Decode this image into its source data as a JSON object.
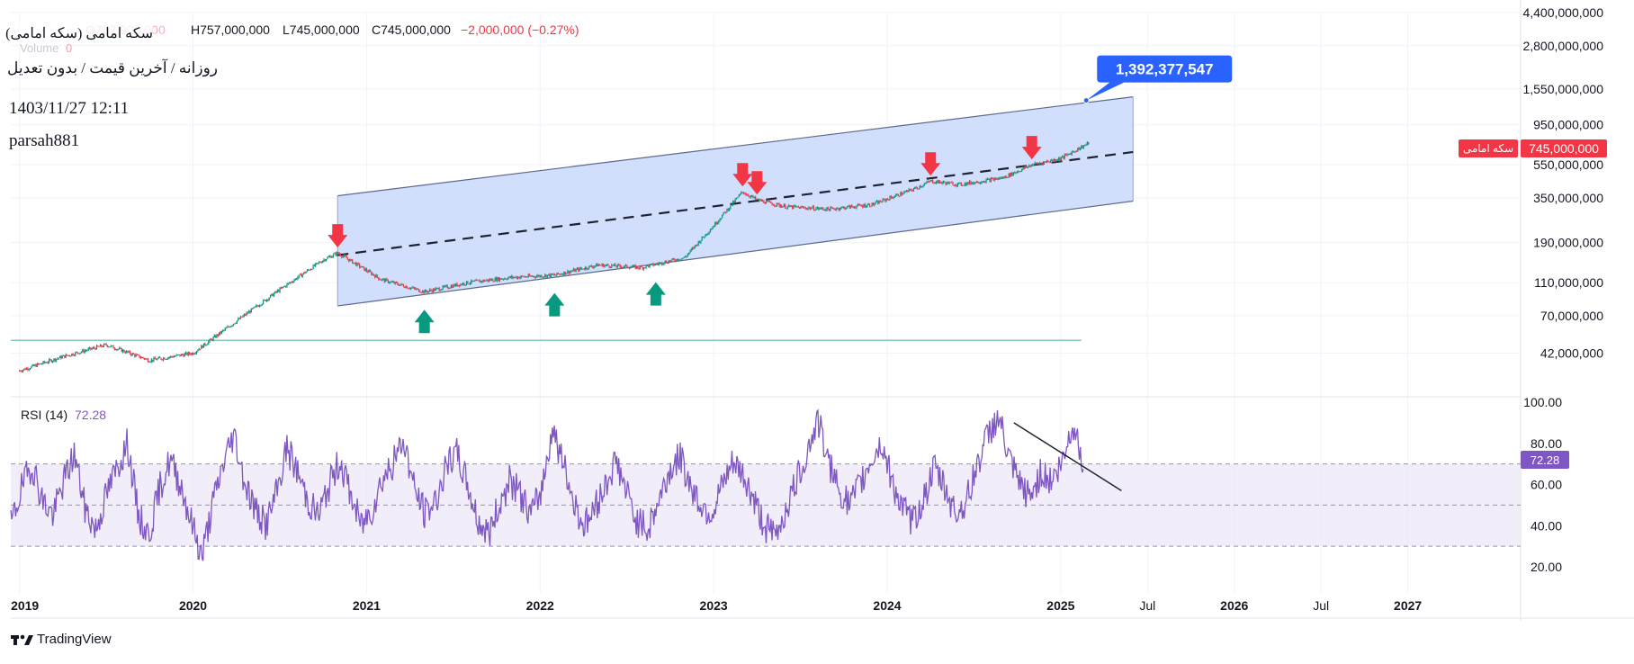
{
  "header": {
    "symbol_name": "سکه امامی (سکه امامی)",
    "period_info": "روزانه / آخرین قیمت / بدون تعدیل",
    "datetime": "1403/11/27 12:11",
    "author": "parsah881",
    "ohlc_o_faded": "O757,000,000",
    "ohlc_h": "H757,000,000",
    "ohlc_l": "L745,000,000",
    "ohlc_c": "C745,000,000",
    "ohlc_change": "−2,000,000 (−0.27%)",
    "volume_label": "Volume",
    "volume_value": "0"
  },
  "price_label": {
    "name": "سکه امامی",
    "value": "745,000,000"
  },
  "projection_label": "1,392,377,547",
  "rsi": {
    "label": "RSI (14)",
    "value": "72.28"
  },
  "branding": {
    "text": "TradingView"
  },
  "colors": {
    "up": "#089981",
    "down": "#f23645",
    "channel_fill": "#c9d9fb",
    "rsi_line": "#7e57c2",
    "rsi_band": "#ede7f6",
    "callout": "#2962ff"
  },
  "chart_data": [
    {
      "type": "line",
      "scale": "log",
      "y_ticks": [
        "4,400,000,000",
        "2,800,000,000",
        "1,550,000,000",
        "950,000,000",
        "550,000,000",
        "350,000,000",
        "190,000,000",
        "110,000,000",
        "70,000,000",
        "42,000,000"
      ],
      "x_ticks": [
        "2019",
        "2020",
        "2021",
        "2022",
        "2023",
        "2024",
        "2025",
        "Jul",
        "2026",
        "Jul",
        "2027"
      ],
      "series": [
        {
          "x": [
            "2019-01",
            "2019-04",
            "2019-07",
            "2019-10",
            "2020-01",
            "2020-04",
            "2020-07",
            "2020-10",
            "2020-11",
            "2021-02",
            "2021-05",
            "2021-08",
            "2021-11",
            "2022-02",
            "2022-05",
            "2022-08",
            "2022-11",
            "2023-01",
            "2023-03",
            "2023-04",
            "2023-06",
            "2023-09",
            "2023-12",
            "2024-03",
            "2024-04",
            "2024-06",
            "2024-09",
            "2024-11",
            "2025-01",
            "2025-03"
          ],
          "values": [
            33000000,
            40000000,
            47000000,
            38000000,
            42000000,
            65000000,
            100000000,
            150000000,
            165000000,
            115000000,
            97000000,
            110000000,
            118000000,
            122000000,
            140000000,
            135000000,
            155000000,
            240000000,
            380000000,
            340000000,
            310000000,
            300000000,
            320000000,
            400000000,
            440000000,
            420000000,
            460000000,
            550000000,
            600000000,
            745000000
          ]
        }
      ],
      "channel": {
        "upper": [
          {
            "x": "2020-11",
            "y": 360000000
          },
          {
            "x": "2025-06",
            "y": 1392377547
          }
        ],
        "middle": [
          {
            "x": "2020-11",
            "y": 160000000
          },
          {
            "x": "2025-06",
            "y": 655000000
          }
        ],
        "lower": [
          {
            "x": "2020-11",
            "y": 80000000
          },
          {
            "x": "2025-06",
            "y": 335000000
          }
        ]
      },
      "horizontal_line": 50000000,
      "markers_down": [
        "2020-11",
        "2023-03",
        "2023-04",
        "2024-04",
        "2024-11"
      ],
      "markers_up": [
        "2021-05",
        "2022-02",
        "2022-09"
      ]
    },
    {
      "type": "line",
      "y_ticks": [
        "100.00",
        "80.00",
        "60.00",
        "40.00",
        "20.00"
      ],
      "levels": [
        70,
        50,
        30
      ],
      "series": [
        {
          "name": "RSI (14)",
          "values": [
            40,
            58,
            70,
            52,
            45,
            62,
            75,
            48,
            38,
            55,
            68,
            80,
            45,
            35,
            58,
            72,
            60,
            42,
            25,
            50,
            70,
            85,
            62,
            48,
            40,
            55,
            78,
            66,
            52,
            45,
            60,
            72,
            55,
            40,
            48,
            63,
            70,
            82,
            58,
            46,
            52,
            68,
            75,
            60,
            42,
            36,
            50,
            62,
            55,
            45,
            58,
            88,
            70,
            52,
            40,
            48,
            60,
            72,
            56,
            42,
            38,
            52,
            66,
            74,
            60,
            50,
            46,
            58,
            70,
            64,
            52,
            40,
            35,
            48,
            62,
            76,
            92,
            70,
            58,
            50,
            60,
            72,
            80,
            62,
            48,
            42,
            54,
            68,
            58,
            46,
            52,
            70,
            84,
            94,
            72,
            60,
            54,
            66,
            62,
            70,
            90,
            72
          ]
        }
      ],
      "ylim": [
        15,
        100
      ]
    }
  ]
}
